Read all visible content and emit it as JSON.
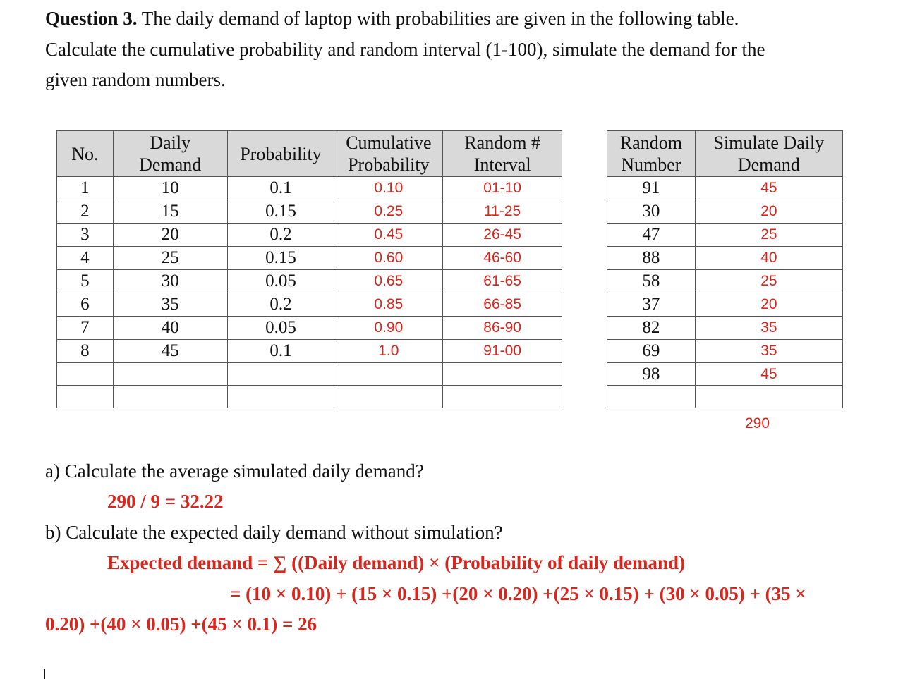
{
  "question": {
    "number_label": "Question 3.",
    "line1_rest": " The daily demand of laptop with probabilities are given in the following table.",
    "line2": "Calculate the cumulative probability and random interval (1-100), simulate the demand for the",
    "line3": "given random numbers."
  },
  "table1": {
    "headers": {
      "no": "No.",
      "daily_1": "Daily",
      "daily_2": "Demand",
      "prob": "Probability",
      "cum_1": "Cumulative",
      "cum_2": "Probability",
      "rand_1": "Random #",
      "rand_2": "Interval"
    },
    "rows": [
      {
        "no": "1",
        "demand": "10",
        "prob": "0.1",
        "cum": "0.10",
        "interval": "01-10"
      },
      {
        "no": "2",
        "demand": "15",
        "prob": "0.15",
        "cum": "0.25",
        "interval": "11-25"
      },
      {
        "no": "3",
        "demand": "20",
        "prob": "0.2",
        "cum": "0.45",
        "interval": "26-45"
      },
      {
        "no": "4",
        "demand": "25",
        "prob": "0.15",
        "cum": "0.60",
        "interval": "46-60"
      },
      {
        "no": "5",
        "demand": "30",
        "prob": "0.05",
        "cum": "0.65",
        "interval": "61-65"
      },
      {
        "no": "6",
        "demand": "35",
        "prob": "0.2",
        "cum": "0.85",
        "interval": "66-85"
      },
      {
        "no": "7",
        "demand": "40",
        "prob": "0.05",
        "cum": "0.90",
        "interval": "86-90"
      },
      {
        "no": "8",
        "demand": "45",
        "prob": "0.1",
        "cum": "1.0",
        "interval": "91-00"
      }
    ]
  },
  "table2": {
    "headers": {
      "rn_1": "Random",
      "rn_2": "Number",
      "sim_1": "Simulate Daily",
      "sim_2": "Demand"
    },
    "rows": [
      {
        "rn": "91",
        "sim": "45"
      },
      {
        "rn": "30",
        "sim": "20"
      },
      {
        "rn": "47",
        "sim": "25"
      },
      {
        "rn": "88",
        "sim": "40"
      },
      {
        "rn": "58",
        "sim": "25"
      },
      {
        "rn": "37",
        "sim": "20"
      },
      {
        "rn": "82",
        "sim": "35"
      },
      {
        "rn": "69",
        "sim": "35"
      },
      {
        "rn": "98",
        "sim": "45"
      }
    ],
    "total": "290"
  },
  "part_a": {
    "question": "a) Calculate the average simulated daily demand?",
    "answer": "290 / 9 = 32.22"
  },
  "part_b": {
    "question": "b) Calculate the expected daily demand without simulation?",
    "answer_line1": "Expected demand = ∑ ((Daily demand) × (Probability of daily demand)",
    "answer_line2": "= (10 × 0.10) + (15 × 0.15) +(20 × 0.20) +(25 × 0.15) + (30 × 0.05) + (35 ×",
    "answer_line3": "0.20) +(40 × 0.05) +(45 × 0.1) = 26"
  },
  "colors": {
    "answer_red": "#d8261d",
    "header_gray": "#d9d9d9",
    "border": "#555555"
  }
}
